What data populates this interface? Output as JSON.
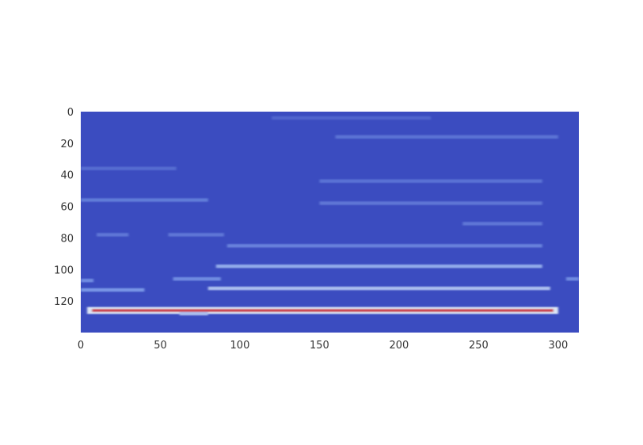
{
  "chart_data": {
    "type": "heatmap",
    "title": "",
    "xlabel": "",
    "ylabel": "",
    "colormap": "coolwarm",
    "background_color": "#3b4cc0",
    "highlight_color": "#b40426",
    "xlim": [
      0,
      313
    ],
    "ylim": [
      140,
      0
    ],
    "y_inverted": true,
    "grid": false,
    "x_ticks": [
      0,
      50,
      100,
      150,
      200,
      250,
      300
    ],
    "y_ticks": [
      0,
      20,
      40,
      60,
      80,
      100,
      120
    ],
    "x_tick_labels": [
      "0",
      "50",
      "100",
      "150",
      "200",
      "250",
      "300"
    ],
    "y_tick_labels": [
      "0",
      "20",
      "40",
      "60",
      "80",
      "100",
      "120"
    ],
    "features": [
      {
        "row": 126,
        "x_start": 4,
        "x_end": 300,
        "intensity": 0.9
      },
      {
        "row": 128,
        "x_start": 62,
        "x_end": 80,
        "intensity": 0.45
      },
      {
        "row": 113,
        "x_start": 0,
        "x_end": 40,
        "intensity": 0.35
      },
      {
        "row": 112,
        "x_start": 80,
        "x_end": 295,
        "intensity": 0.45
      },
      {
        "row": 107,
        "x_start": 0,
        "x_end": 8,
        "intensity": 0.3
      },
      {
        "row": 106,
        "x_start": 58,
        "x_end": 88,
        "intensity": 0.3
      },
      {
        "row": 106,
        "x_start": 305,
        "x_end": 313,
        "intensity": 0.3
      },
      {
        "row": 98,
        "x_start": 85,
        "x_end": 290,
        "intensity": 0.4
      },
      {
        "row": 85,
        "x_start": 92,
        "x_end": 290,
        "intensity": 0.25
      },
      {
        "row": 78,
        "x_start": 10,
        "x_end": 30,
        "intensity": 0.2
      },
      {
        "row": 78,
        "x_start": 55,
        "x_end": 90,
        "intensity": 0.2
      },
      {
        "row": 71,
        "x_start": 240,
        "x_end": 290,
        "intensity": 0.2
      },
      {
        "row": 56,
        "x_start": 0,
        "x_end": 80,
        "intensity": 0.22
      },
      {
        "row": 58,
        "x_start": 150,
        "x_end": 290,
        "intensity": 0.2
      },
      {
        "row": 44,
        "x_start": 150,
        "x_end": 290,
        "intensity": 0.18
      },
      {
        "row": 36,
        "x_start": 0,
        "x_end": 60,
        "intensity": 0.15
      },
      {
        "row": 16,
        "x_start": 160,
        "x_end": 300,
        "intensity": 0.18
      },
      {
        "row": 4,
        "x_start": 120,
        "x_end": 220,
        "intensity": 0.12
      }
    ]
  }
}
